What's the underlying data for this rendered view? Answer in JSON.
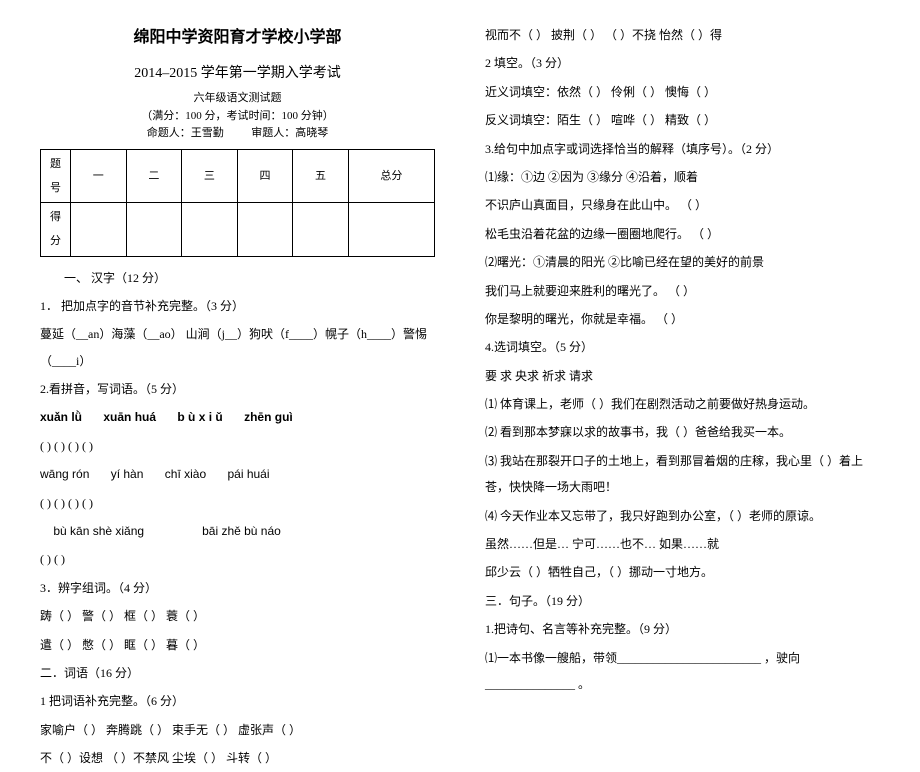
{
  "header": {
    "school": "绵阳中学资阳育才学校小学部",
    "exam": "2014–2015 学年第一学期入学考试",
    "sub1": "六年级语文测试题",
    "sub2": "（满分：100 分，考试时间：100 分钟）",
    "sub3_l": "命题人：王雪勤",
    "sub3_r": "审题人：高晓琴"
  },
  "scoreTable": {
    "rowTitle": "题号",
    "cols": [
      "一",
      "二",
      "三",
      "四",
      "五",
      "总分"
    ],
    "row2": "得分"
  },
  "s1": {
    "title": "一、 汉字（12 分）",
    "q1": "1．  把加点字的音节补充完整。（3 分）",
    "q1line": "蔓延（__an）海藻（__ao） 山涧（j__）狗吠（f____）幌子（h____）警惕（____i）",
    "q2": "2.看拼音，写词语。（5 分）",
    "py1": [
      "xuǎn lǜ",
      "xuān huá",
      "b ù   x i ǔ",
      "zhēn guì"
    ],
    "bl1": "(         )   (             )           (            )         (             )",
    "py2": [
      "wāng  rón",
      "yí  hàn",
      "chī  xiào",
      "pái  huái"
    ],
    "bl2": "(          )         (           )             (           )          (            )",
    "py3": [
      "bù  kān  shè  xiǎng",
      "bāi  zhě  bù  náo"
    ],
    "bl3": "(                  )                          (                 )",
    "q3": "3．辨字组词。（4 分）",
    "q3a": "踌（           ）    警（           ）    框（           ）    蓑（           ）",
    "q3b": "遣（           ）    憋（           ）    眶（           ）    暮（           ）"
  },
  "s2": {
    "title": "二．词语（16 分）",
    "q1": "1 把词语补充完整。（6 分）",
    "q1a": "家喻户（       ）    奔腾跳（      ）    束手无（      ）    虚张声（      ）",
    "q1b": "不（     ）设想    （       ）不禁风         尘埃（      ）    斗转（      ）"
  },
  "right": {
    "r0": "视而不（          ）       披荆（       ）     （      ）不挠    怡然（       ）得",
    "r1": "2 填空。（3 分）",
    "r2": "近义词填空：依然（            ）    伶俐（            ）    懊悔（            ）",
    "r3": "反义词填空：陌生（            ）    喧哗（            ）    精致（            ）",
    "r4": "3.给句中加点字或词选择恰当的解释（填序号）。（2 分）",
    "r5": "⑴缘：①边   ②因为   ③缘分   ④沿着，顺着",
    "r5a": "   不识庐山真面目，只缘身在此山中。  （         ）",
    "r5b": "   松毛虫沿着花盆的边缘一圈圈地爬行。  （         ）",
    "r6": "⑵曙光：①清晨的阳光        ②比喻已经在望的美好的前景",
    "r6a": "   我们马上就要迎来胜利的曙光了。   （         ）",
    "r6b": "   你是黎明的曙光，你就是幸福。     （         ）",
    "r7": "4.选词填空。（5 分）",
    "r7w": "   要 求     央求     祈求     请求",
    "r7a": "⑴ 体育课上，老师（          ）我们在剧烈活动之前要做好热身运动。",
    "r7b": "⑵ 看到那本梦寐以求的故事书，我（            ）爸爸给我买一本。",
    "r7c": "⑶ 我站在那裂开口子的土地上，看到那冒着烟的庄稼，我心里（           ）着上苍，快快降一场大雨吧！",
    "r7d": "⑷ 今天作业本又忘带了，我只好跑到办公室，（            ）老师的原谅。",
    "r8a": "   虽然……但是…      宁可……也不…        如果……就",
    "r8b": "   邱少云（         ）牺牲自己，（           ）挪动一寸地方。",
    "s3": "三．句子。（19 分）",
    "s3q1": "1.把诗句、名言等补充完整。（9 分）",
    "s3a": "⑴一本书像一艘船，带领________________________ ，驶向_______________ 。"
  }
}
